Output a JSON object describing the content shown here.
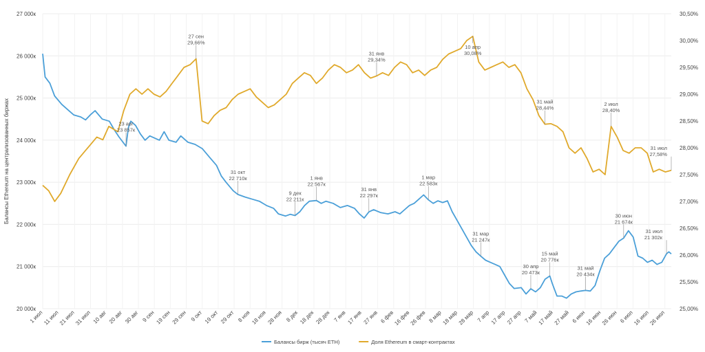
{
  "chart_data": {
    "type": "line",
    "title": "",
    "xlabel": "",
    "ylabel": "Балансы Ethereum на централизованных биржах",
    "ylim": [
      20000,
      27000
    ],
    "y2lim": [
      25.0,
      30.5
    ],
    "grid": true,
    "legend_position": "bottom-center",
    "yticks": [
      "27 000к",
      "26 000к",
      "25 000к",
      "24 000к",
      "23 000к",
      "22 000к",
      "21 000к",
      "20 000к"
    ],
    "y2ticks": [
      "30,50%",
      "30,00%",
      "29,50%",
      "29,00%",
      "28,50%",
      "28,00%",
      "27,50%",
      "27,00%",
      "26,50%",
      "26,00%",
      "25,50%",
      "25,00%"
    ],
    "xticks": [
      "1 июл",
      "11 июл",
      "21 июл",
      "31 июл",
      "10 авг",
      "20 авг",
      "30 авг",
      "9 сен",
      "19 сен",
      "29 сен",
      "9 окт",
      "19 окт",
      "29 окт",
      "8 ноя",
      "18 ноя",
      "28 ноя",
      "8 дек",
      "18 дек",
      "28 дек",
      "7 янв",
      "17 янв",
      "27 янв",
      "6 фев",
      "16 фев",
      "26 фев",
      "8 мар",
      "18 мар",
      "28 мар",
      "7 апр",
      "17 апр",
      "27 апр",
      "7 май",
      "17 май",
      "27 май",
      "6 июн",
      "16 июн",
      "26 июн",
      "6 июл",
      "16 июл",
      "26 июл"
    ],
    "series": [
      {
        "name": "Балансы бирж (тысяч ETH)",
        "axis": "left",
        "color": "#4a9fd8",
        "points": [
          [
            0,
            26050
          ],
          [
            1,
            25500
          ],
          [
            3,
            25350
          ],
          [
            5,
            25050
          ],
          [
            8,
            24850
          ],
          [
            10,
            24750
          ],
          [
            13,
            24600
          ],
          [
            16,
            24550
          ],
          [
            18,
            24480
          ],
          [
            20,
            24600
          ],
          [
            22,
            24700
          ],
          [
            25,
            24500
          ],
          [
            28,
            24450
          ],
          [
            30,
            24250
          ],
          [
            32,
            24080
          ],
          [
            35,
            23857
          ],
          [
            36,
            24300
          ],
          [
            37,
            24450
          ],
          [
            39,
            24350
          ],
          [
            41,
            24150
          ],
          [
            43,
            24000
          ],
          [
            45,
            24100
          ],
          [
            47,
            24050
          ],
          [
            49,
            24000
          ],
          [
            51,
            24200
          ],
          [
            53,
            24000
          ],
          [
            56,
            23950
          ],
          [
            58,
            24100
          ],
          [
            61,
            23950
          ],
          [
            64,
            23900
          ],
          [
            67,
            23800
          ],
          [
            70,
            23600
          ],
          [
            73,
            23400
          ],
          [
            75,
            23150
          ],
          [
            77,
            23000
          ],
          [
            80,
            22800
          ],
          [
            82,
            22710
          ],
          [
            85,
            22650
          ],
          [
            88,
            22600
          ],
          [
            91,
            22550
          ],
          [
            94,
            22450
          ],
          [
            97,
            22380
          ],
          [
            99,
            22250
          ],
          [
            102,
            22200
          ],
          [
            104,
            22240
          ],
          [
            106,
            22211
          ],
          [
            108,
            22300
          ],
          [
            110,
            22450
          ],
          [
            112,
            22550
          ],
          [
            115,
            22567
          ],
          [
            117,
            22500
          ],
          [
            119,
            22550
          ],
          [
            122,
            22500
          ],
          [
            125,
            22400
          ],
          [
            128,
            22450
          ],
          [
            131,
            22380
          ],
          [
            133,
            22250
          ],
          [
            135,
            22150
          ],
          [
            137,
            22297
          ],
          [
            139,
            22350
          ],
          [
            142,
            22280
          ],
          [
            145,
            22250
          ],
          [
            148,
            22300
          ],
          [
            150,
            22250
          ],
          [
            152,
            22350
          ],
          [
            154,
            22450
          ],
          [
            156,
            22500
          ],
          [
            158,
            22600
          ],
          [
            160,
            22700
          ],
          [
            162,
            22583
          ],
          [
            164,
            22500
          ],
          [
            166,
            22560
          ],
          [
            168,
            22520
          ],
          [
            170,
            22560
          ],
          [
            172,
            22300
          ],
          [
            174,
            22100
          ],
          [
            176,
            21900
          ],
          [
            178,
            21700
          ],
          [
            180,
            21500
          ],
          [
            182,
            21350
          ],
          [
            184,
            21247
          ],
          [
            186,
            21150
          ],
          [
            188,
            21100
          ],
          [
            190,
            21050
          ],
          [
            192,
            21000
          ],
          [
            194,
            20800
          ],
          [
            196,
            20600
          ],
          [
            198,
            20480
          ],
          [
            201,
            20500
          ],
          [
            203,
            20350
          ],
          [
            205,
            20473
          ],
          [
            207,
            20400
          ],
          [
            209,
            20500
          ],
          [
            211,
            20700
          ],
          [
            213,
            20776
          ],
          [
            214,
            20600
          ],
          [
            216,
            20300
          ],
          [
            218,
            20300
          ],
          [
            220,
            20250
          ],
          [
            222,
            20350
          ],
          [
            224,
            20400
          ],
          [
            226,
            20420
          ],
          [
            228,
            20434
          ],
          [
            230,
            20420
          ],
          [
            232,
            20550
          ],
          [
            234,
            20900
          ],
          [
            236,
            21200
          ],
          [
            238,
            21300
          ],
          [
            240,
            21450
          ],
          [
            242,
            21600
          ],
          [
            244,
            21674
          ],
          [
            246,
            21850
          ],
          [
            248,
            21700
          ],
          [
            250,
            21250
          ],
          [
            252,
            21200
          ],
          [
            254,
            21100
          ],
          [
            256,
            21150
          ],
          [
            258,
            21050
          ],
          [
            260,
            21100
          ],
          [
            262,
            21302
          ],
          [
            263,
            21350
          ],
          [
            264,
            21300
          ]
        ]
      },
      {
        "name": "Доля Ethereum в смарт-контрактах",
        "axis": "right",
        "color": "#e0a92b",
        "points": [
          [
            0,
            27.3
          ],
          [
            2,
            27.2
          ],
          [
            4,
            27.0
          ],
          [
            6,
            27.15
          ],
          [
            9,
            27.5
          ],
          [
            12,
            27.8
          ],
          [
            15,
            28.0
          ],
          [
            18,
            28.2
          ],
          [
            20,
            28.15
          ],
          [
            22,
            28.4
          ],
          [
            25,
            28.3
          ],
          [
            27,
            28.7
          ],
          [
            29,
            29.0
          ],
          [
            31,
            29.1
          ],
          [
            33,
            29.0
          ],
          [
            35,
            29.1
          ],
          [
            37,
            29.0
          ],
          [
            39,
            28.95
          ],
          [
            41,
            29.05
          ],
          [
            43,
            29.2
          ],
          [
            45,
            29.35
          ],
          [
            47,
            29.5
          ],
          [
            49,
            29.55
          ],
          [
            51,
            29.66
          ],
          [
            53,
            28.5
          ],
          [
            55,
            28.45
          ],
          [
            57,
            28.6
          ],
          [
            59,
            28.7
          ],
          [
            61,
            28.75
          ],
          [
            63,
            28.9
          ],
          [
            65,
            29.0
          ],
          [
            67,
            29.05
          ],
          [
            69,
            29.1
          ],
          [
            71,
            28.95
          ],
          [
            73,
            28.85
          ],
          [
            75,
            28.75
          ],
          [
            77,
            28.8
          ],
          [
            79,
            28.9
          ],
          [
            81,
            29.0
          ],
          [
            83,
            29.2
          ],
          [
            85,
            29.3
          ],
          [
            87,
            29.4
          ],
          [
            89,
            29.35
          ],
          [
            91,
            29.2
          ],
          [
            93,
            29.3
          ],
          [
            95,
            29.45
          ],
          [
            97,
            29.55
          ],
          [
            99,
            29.5
          ],
          [
            101,
            29.4
          ],
          [
            103,
            29.45
          ],
          [
            105,
            29.55
          ],
          [
            107,
            29.4
          ],
          [
            109,
            29.3
          ],
          [
            111,
            29.34
          ],
          [
            113,
            29.4
          ],
          [
            115,
            29.35
          ],
          [
            117,
            29.5
          ],
          [
            119,
            29.6
          ],
          [
            121,
            29.55
          ],
          [
            123,
            29.4
          ],
          [
            125,
            29.45
          ],
          [
            127,
            29.35
          ],
          [
            129,
            29.45
          ],
          [
            131,
            29.5
          ],
          [
            133,
            29.65
          ],
          [
            135,
            29.75
          ],
          [
            137,
            29.8
          ],
          [
            139,
            29.85
          ],
          [
            141,
            30.0
          ],
          [
            143,
            30.08
          ],
          [
            145,
            29.6
          ],
          [
            147,
            29.45
          ],
          [
            149,
            29.5
          ],
          [
            151,
            29.55
          ],
          [
            153,
            29.6
          ],
          [
            155,
            29.5
          ],
          [
            157,
            29.55
          ],
          [
            159,
            29.4
          ],
          [
            161,
            29.1
          ],
          [
            163,
            28.9
          ],
          [
            165,
            28.6
          ],
          [
            167,
            28.44
          ],
          [
            169,
            28.45
          ],
          [
            171,
            28.4
          ],
          [
            173,
            28.3
          ],
          [
            175,
            28.0
          ],
          [
            177,
            27.9
          ],
          [
            179,
            28.0
          ],
          [
            181,
            27.8
          ],
          [
            183,
            27.55
          ],
          [
            185,
            27.6
          ],
          [
            187,
            27.5
          ],
          [
            189,
            28.4
          ],
          [
            191,
            28.2
          ],
          [
            193,
            27.95
          ],
          [
            195,
            27.9
          ],
          [
            197,
            28.0
          ],
          [
            199,
            28.0
          ],
          [
            201,
            27.9
          ],
          [
            203,
            27.55
          ],
          [
            205,
            27.6
          ],
          [
            207,
            27.55
          ],
          [
            209,
            27.58
          ]
        ]
      }
    ],
    "annotations": [
      {
        "series": 1,
        "x": 51,
        "lines": [
          "27 сен",
          "29,66%"
        ]
      },
      {
        "series": 1,
        "x": 143,
        "lines": [
          "10 апр",
          "30,08%"
        ]
      },
      {
        "series": 1,
        "x": 111,
        "lines": [
          "31 янв",
          "29,34%"
        ]
      },
      {
        "series": 1,
        "x": 167,
        "lines": [
          "31 май",
          "28,44%"
        ]
      },
      {
        "series": 1,
        "x": 189,
        "lines": [
          "2 июл",
          "28,40%"
        ]
      },
      {
        "series": 1,
        "x": 209,
        "lines": [
          "31 июл",
          "27,58%"
        ]
      },
      {
        "series": 0,
        "x": 35,
        "lines": [
          "23 авг",
          "23 857к"
        ]
      },
      {
        "series": 0,
        "x": 82,
        "lines": [
          "31 окт",
          "22 710к"
        ]
      },
      {
        "series": 0,
        "x": 106,
        "lines": [
          "9 дек",
          "22 211к"
        ]
      },
      {
        "series": 0,
        "x": 115,
        "lines": [
          "1 янв",
          "22 567к"
        ]
      },
      {
        "series": 0,
        "x": 137,
        "lines": [
          "31 янв",
          "22 297к"
        ]
      },
      {
        "series": 0,
        "x": 162,
        "lines": [
          "1 мар",
          "22 583к"
        ]
      },
      {
        "series": 0,
        "x": 184,
        "lines": [
          "31 мар",
          "21 247к"
        ]
      },
      {
        "series": 0,
        "x": 205,
        "lines": [
          "30 апр",
          "20 473к"
        ]
      },
      {
        "series": 0,
        "x": 213,
        "lines": [
          "15 май",
          "20 776к"
        ]
      },
      {
        "series": 0,
        "x": 228,
        "lines": [
          "31 май",
          "20 434к"
        ]
      },
      {
        "series": 0,
        "x": 244,
        "lines": [
          "30 июн",
          "21 674к"
        ]
      },
      {
        "series": 0,
        "x": 262,
        "lines": [
          "31 июл",
          "21 302к"
        ]
      }
    ]
  }
}
